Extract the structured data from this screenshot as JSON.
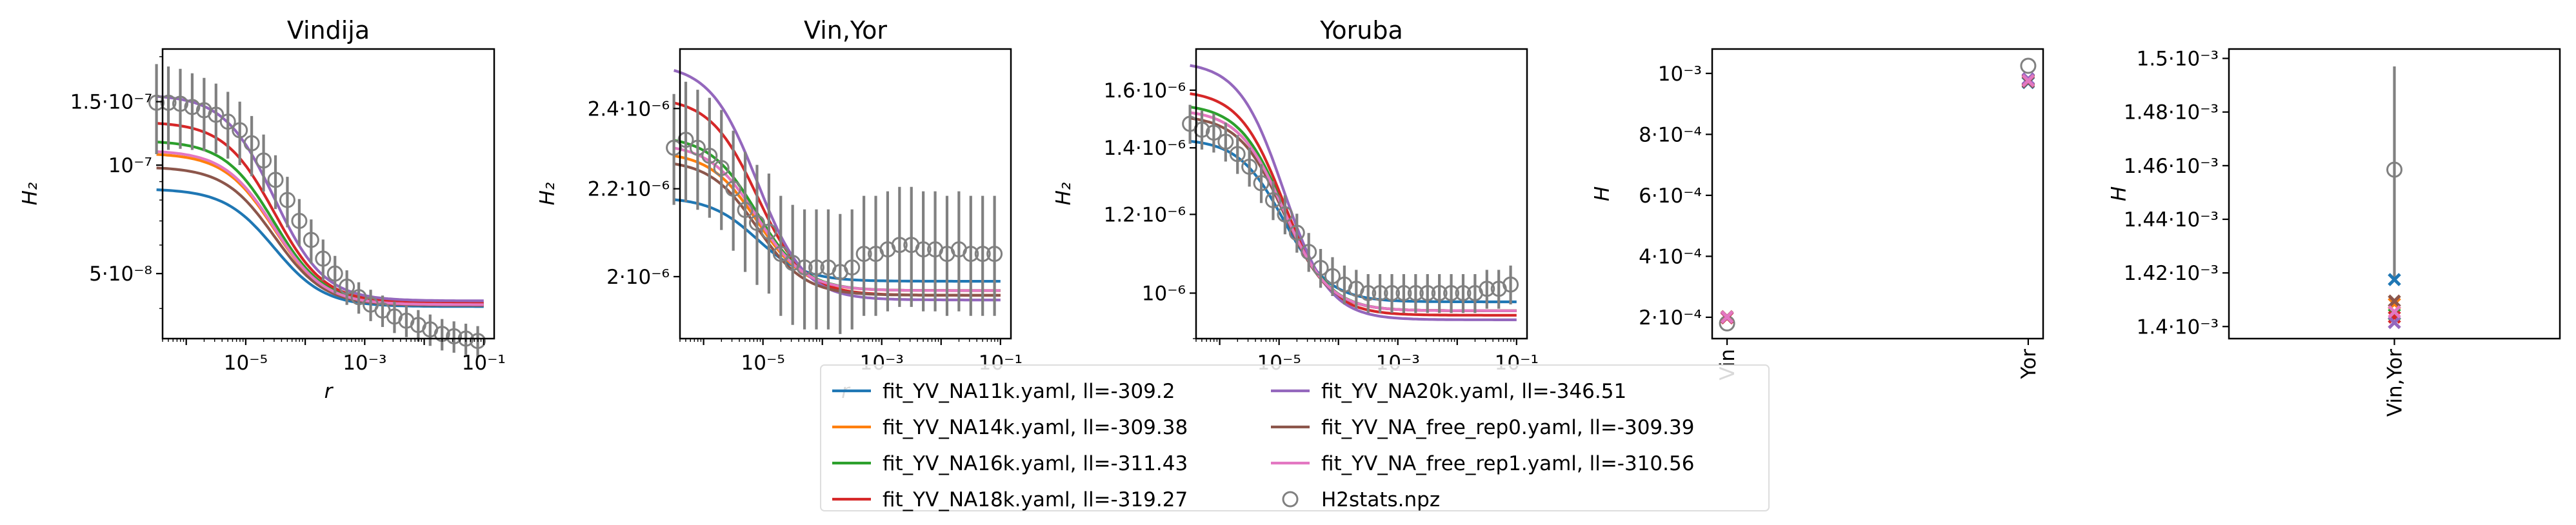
{
  "figure": {
    "colors": {
      "NA11k": "#1f77b4",
      "NA14k": "#ff7f0e",
      "NA16k": "#2ca02c",
      "NA18k": "#d62728",
      "NA20k": "#9467bd",
      "rep0": "#8c564b",
      "rep1": "#e377c2",
      "data": "#808080"
    }
  },
  "legend": {
    "entries": [
      {
        "key": "NA11k",
        "label": "fit_YV_NA11k.yaml, ll=-309.2",
        "kind": "line"
      },
      {
        "key": "NA14k",
        "label": "fit_YV_NA14k.yaml, ll=-309.38",
        "kind": "line"
      },
      {
        "key": "NA16k",
        "label": "fit_YV_NA16k.yaml, ll=-311.43",
        "kind": "line"
      },
      {
        "key": "NA18k",
        "label": "fit_YV_NA18k.yaml, ll=-319.27",
        "kind": "line"
      },
      {
        "key": "NA20k",
        "label": "fit_YV_NA20k.yaml, ll=-346.51",
        "kind": "line"
      },
      {
        "key": "rep0",
        "label": "fit_YV_NA_free_rep0.yaml, ll=-309.39",
        "kind": "line"
      },
      {
        "key": "rep1",
        "label": "fit_YV_NA_free_rep1.yaml, ll=-310.56",
        "kind": "line"
      },
      {
        "key": "data",
        "label": "H2stats.npz",
        "kind": "marker"
      }
    ]
  },
  "chart_data": [
    {
      "type": "line",
      "title": "Vindija",
      "xlabel": "r",
      "ylabel": "H₂",
      "xscale": "log",
      "yscale": "log",
      "xlim": [
        4e-07,
        0.15
      ],
      "ylim": [
        3.3e-08,
        2.1e-07
      ],
      "xticks": [
        {
          "v": 1e-05,
          "label": "10⁻⁵"
        },
        {
          "v": 0.001,
          "label": "10⁻³"
        },
        {
          "v": 0.1,
          "label": "10⁻¹"
        }
      ],
      "yticks": [
        {
          "v": 5e-08,
          "label": "5·10⁻⁸"
        },
        {
          "v": 1e-07,
          "label": "10⁻⁷"
        },
        {
          "v": 1.5e-07,
          "label": "1.5·10⁻⁷"
        }
      ],
      "fits": {
        "NA11k": [
          8.6e-08,
          4.05e-08
        ],
        "NA14k": [
          1.08e-07,
          4.1e-08
        ],
        "NA16k": [
          1.17e-07,
          4.12e-08
        ],
        "NA18k": [
          1.32e-07,
          4.15e-08
        ],
        "NA20k": [
          1.57e-07,
          4.2e-08
        ],
        "rep0": [
          9.9e-08,
          4.08e-08
        ],
        "rep1": [
          1.1e-07,
          4.1e-08
        ]
      },
      "fit_rmid": 3e-05,
      "fit_width": 0.42,
      "data": {
        "log10_r_start": -6.5,
        "log10_r_step": 0.2,
        "y": [
          1.49e-07,
          1.49e-07,
          1.48e-07,
          1.45e-07,
          1.42e-07,
          1.38e-07,
          1.32e-07,
          1.25e-07,
          1.15e-07,
          1.03e-07,
          9.1e-08,
          8e-08,
          7e-08,
          6.2e-08,
          5.5e-08,
          5e-08,
          4.6e-08,
          4.3e-08,
          4.1e-08,
          3.95e-08,
          3.8e-08,
          3.7e-08,
          3.6e-08,
          3.5e-08,
          3.4e-08,
          3.35e-08,
          3.3e-08,
          3.25e-08
        ],
        "err": [
          0.28,
          0.26,
          0.25,
          0.24,
          0.23,
          0.22,
          0.21,
          0.2,
          0.19,
          0.18,
          0.17,
          0.16,
          0.15,
          0.14,
          0.13,
          0.12,
          0.11,
          0.1,
          0.1,
          0.1,
          0.1,
          0.1,
          0.1,
          0.1,
          0.1,
          0.1,
          0.1,
          0.1
        ]
      }
    },
    {
      "type": "line",
      "title": "Vin,Yor",
      "xlabel": "r",
      "ylabel": "H₂",
      "xscale": "log",
      "yscale": "log",
      "xlim": [
        4e-07,
        0.15
      ],
      "ylim": [
        1.87e-06,
        2.56e-06
      ],
      "xticks": [
        {
          "v": 1e-05,
          "label": "10⁻⁵"
        },
        {
          "v": 0.001,
          "label": "10⁻³"
        },
        {
          "v": 0.1,
          "label": "10⁻¹"
        }
      ],
      "yticks": [
        {
          "v": 2e-06,
          "label": "2·10⁻⁶"
        },
        {
          "v": 2.2e-06,
          "label": "2.2·10⁻⁶"
        },
        {
          "v": 2.4e-06,
          "label": "2.4·10⁻⁶"
        }
      ],
      "fits": {
        "NA11k": [
          2.18e-06,
          1.99e-06
        ],
        "NA14k": [
          2.29e-06,
          1.97e-06
        ],
        "NA16k": [
          2.33e-06,
          1.97e-06
        ],
        "NA18k": [
          2.43e-06,
          1.96e-06
        ],
        "NA20k": [
          2.52e-06,
          1.95e-06
        ],
        "rep0": [
          2.27e-06,
          1.96e-06
        ],
        "rep1": [
          2.31e-06,
          1.97e-06
        ]
      },
      "fit_rmid": 8e-06,
      "fit_width": 0.4,
      "data": {
        "log10_r_start": -6.5,
        "log10_r_step": 0.2,
        "y": [
          2.3e-06,
          2.32e-06,
          2.3e-06,
          2.28e-06,
          2.25e-06,
          2.2e-06,
          2.15e-06,
          2.12e-06,
          2.1e-06,
          2.05e-06,
          2.03e-06,
          2.02e-06,
          2.02e-06,
          2.02e-06,
          2.01e-06,
          2.02e-06,
          2.05e-06,
          2.05e-06,
          2.06e-06,
          2.07e-06,
          2.07e-06,
          2.06e-06,
          2.06e-06,
          2.05e-06,
          2.06e-06,
          2.05e-06,
          2.05e-06,
          2.05e-06
        ],
        "err": [
          0.06,
          0.065,
          0.065,
          0.065,
          0.065,
          0.065,
          0.065,
          0.065,
          0.065,
          0.065,
          0.065,
          0.065,
          0.065,
          0.065,
          0.065,
          0.065,
          0.065,
          0.065,
          0.065,
          0.065,
          0.065,
          0.065,
          0.065,
          0.065,
          0.065,
          0.065,
          0.065,
          0.065
        ]
      }
    },
    {
      "type": "line",
      "title": "Yoruba",
      "xlabel": "r",
      "ylabel": "H₂",
      "xscale": "log",
      "yscale": "log",
      "xlim": [
        4e-07,
        0.15
      ],
      "ylim": [
        9e-07,
        1.76e-06
      ],
      "xticks": [
        {
          "v": 1e-05,
          "label": "10⁻⁵"
        },
        {
          "v": 0.001,
          "label": "10⁻³"
        },
        {
          "v": 0.1,
          "label": "10⁻¹"
        }
      ],
      "yticks": [
        {
          "v": 1e-06,
          "label": "10⁻⁶"
        },
        {
          "v": 1.2e-06,
          "label": "1.2·10⁻⁶"
        },
        {
          "v": 1.4e-06,
          "label": "1.4·10⁻⁶"
        },
        {
          "v": 1.6e-06,
          "label": "1.6·10⁻⁶"
        }
      ],
      "fits": {
        "NA11k": [
          1.43e-06,
          9.8e-07
        ],
        "NA14k": [
          1.53e-06,
          9.6e-07
        ],
        "NA16k": [
          1.55e-06,
          9.6e-07
        ],
        "NA18k": [
          1.6e-06,
          9.5e-07
        ],
        "NA20k": [
          1.71e-06,
          9.4e-07
        ],
        "rep0": [
          1.51e-06,
          9.6e-07
        ],
        "rep1": [
          1.53e-06,
          9.6e-07
        ]
      },
      "fit_rmid": 1.2e-05,
      "fit_width": 0.38,
      "data": {
        "log10_r_start": -6.5,
        "log10_r_step": 0.2,
        "y": [
          1.48e-06,
          1.46e-06,
          1.45e-06,
          1.42e-06,
          1.38e-06,
          1.34e-06,
          1.29e-06,
          1.24e-06,
          1.2e-06,
          1.15e-06,
          1.1e-06,
          1.06e-06,
          1.04e-06,
          1.02e-06,
          1.01e-06,
          1e-06,
          1e-06,
          1e-06,
          1e-06,
          1e-06,
          1e-06,
          1e-06,
          1e-06,
          1e-06,
          1e-06,
          1.01e-06,
          1.01e-06,
          1.02e-06
        ],
        "err": [
          0.045,
          0.045,
          0.045,
          0.045,
          0.045,
          0.045,
          0.045,
          0.045,
          0.045,
          0.045,
          0.045,
          0.045,
          0.045,
          0.045,
          0.045,
          0.045,
          0.045,
          0.045,
          0.045,
          0.045,
          0.045,
          0.045,
          0.045,
          0.045,
          0.045,
          0.045,
          0.045,
          0.045
        ]
      }
    },
    {
      "type": "scatter",
      "title": "",
      "xlabel": "",
      "ylabel": "H",
      "categories": [
        "Vin",
        "Yor"
      ],
      "ylim": [
        0.00013,
        0.00108
      ],
      "yticks": [
        {
          "v": 0.0002,
          "label": "2·10⁻⁴"
        },
        {
          "v": 0.0004,
          "label": "4·10⁻⁴"
        },
        {
          "v": 0.0006,
          "label": "6·10⁻⁴"
        },
        {
          "v": 0.0008,
          "label": "8·10⁻⁴"
        },
        {
          "v": 0.001,
          "label": "10⁻³"
        }
      ],
      "data_points": [
        {
          "cat": 0,
          "y": 0.00018
        },
        {
          "cat": 1,
          "y": 0.001025
        }
      ],
      "fit_points": {
        "NA11k": [
          0.0002,
          0.00097
        ],
        "NA14k": [
          0.000202,
          0.000975
        ],
        "NA16k": [
          0.0002,
          0.000978
        ],
        "NA18k": [
          0.000198,
          0.00098
        ],
        "NA20k": [
          0.0002,
          0.000982
        ],
        "rep0": [
          0.000202,
          0.000972
        ],
        "rep1": [
          0.000201,
          0.000976
        ]
      }
    },
    {
      "type": "scatter",
      "title": "",
      "xlabel": "",
      "ylabel": "H",
      "categories": [
        "Vin,Yor"
      ],
      "ylim": [
        0.0013955,
        0.0015035
      ],
      "yticks": [
        {
          "v": 0.0014,
          "label": "1.4·10⁻³"
        },
        {
          "v": 0.00142,
          "label": "1.42·10⁻³"
        },
        {
          "v": 0.00144,
          "label": "1.44·10⁻³"
        },
        {
          "v": 0.00146,
          "label": "1.46·10⁻³"
        },
        {
          "v": 0.00148,
          "label": "1.48·10⁻³"
        },
        {
          "v": 0.0015,
          "label": "1.5·10⁻³"
        }
      ],
      "data_points": [
        {
          "cat": 0,
          "y": 0.0014585,
          "lo": 0.001418,
          "hi": 0.001497
        }
      ],
      "fit_points": {
        "NA11k": [
          0.0014175
        ],
        "NA14k": [
          0.0014085
        ],
        "NA16k": [
          0.0014045
        ],
        "NA18k": [
          0.0014035
        ],
        "NA20k": [
          0.0014015
        ],
        "rep0": [
          0.0014095
        ],
        "rep1": [
          0.0014055
        ]
      }
    }
  ]
}
